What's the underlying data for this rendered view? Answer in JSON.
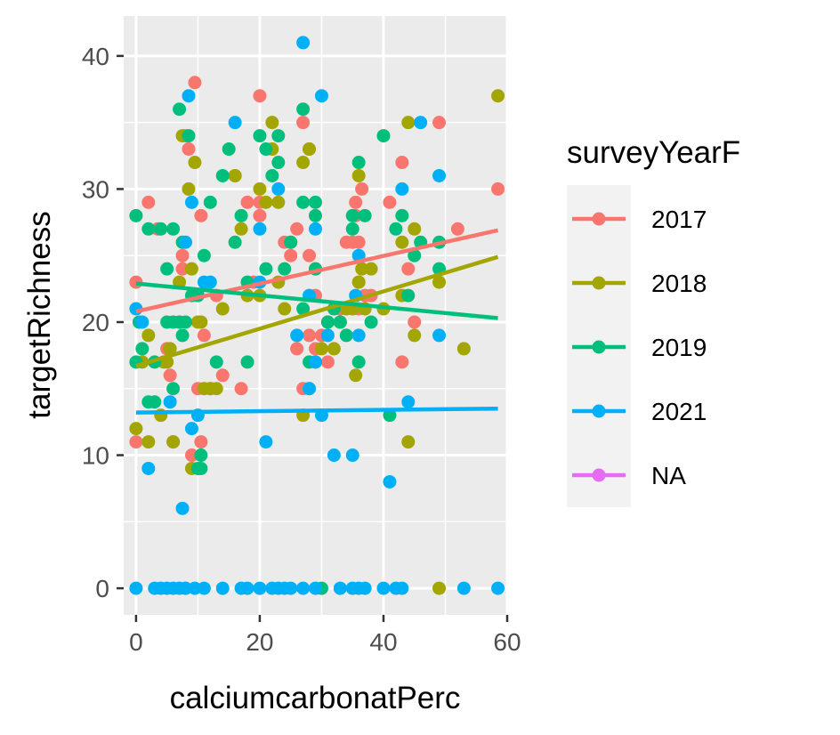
{
  "chart_data": {
    "type": "scatter",
    "title": "",
    "xlabel": "calciumcarbonatPerc",
    "ylabel": "targetRichness",
    "xlim": [
      -2,
      60
    ],
    "ylim": [
      -2,
      43
    ],
    "x_ticks": [
      0,
      20,
      40,
      60
    ],
    "y_ticks": [
      0,
      10,
      20,
      30,
      40
    ],
    "x_tick_labels": [
      "0",
      "20",
      "40",
      "60"
    ],
    "y_tick_labels": [
      "0",
      "10",
      "20",
      "30",
      "40"
    ],
    "grid": true,
    "legend": {
      "title": "surveyYearF",
      "position": "right"
    },
    "series": [
      {
        "name": "2017",
        "color": "#F8766D",
        "trend": [
          [
            0,
            20.8
          ],
          [
            58.5,
            26.9
          ]
        ],
        "points": [
          [
            0,
            23
          ],
          [
            0,
            11
          ],
          [
            2,
            29
          ],
          [
            3.5,
            27
          ],
          [
            5,
            18
          ],
          [
            5.5,
            16
          ],
          [
            6,
            11
          ],
          [
            7,
            20
          ],
          [
            7.5,
            25
          ],
          [
            7.5,
            24
          ],
          [
            8,
            34
          ],
          [
            8.5,
            33
          ],
          [
            9,
            10
          ],
          [
            9.5,
            38
          ],
          [
            10,
            15
          ],
          [
            10.5,
            11
          ],
          [
            10.5,
            28
          ],
          [
            11,
            19
          ],
          [
            12,
            15
          ],
          [
            13,
            22
          ],
          [
            14,
            16
          ],
          [
            16,
            31
          ],
          [
            17,
            15
          ],
          [
            18,
            29
          ],
          [
            19,
            23
          ],
          [
            20,
            37
          ],
          [
            20,
            29
          ],
          [
            20,
            28
          ],
          [
            24,
            26
          ],
          [
            25,
            25
          ],
          [
            26,
            18
          ],
          [
            26,
            27
          ],
          [
            27,
            35
          ],
          [
            27,
            15
          ],
          [
            28,
            33
          ],
          [
            28,
            19
          ],
          [
            28,
            25
          ],
          [
            29,
            18
          ],
          [
            29,
            22
          ],
          [
            30,
            19
          ],
          [
            31,
            17
          ],
          [
            33,
            20
          ],
          [
            33,
            21
          ],
          [
            34,
            26
          ],
          [
            35,
            26
          ],
          [
            35.5,
            28
          ],
          [
            35.5,
            29
          ],
          [
            36,
            23
          ],
          [
            36,
            21
          ],
          [
            36,
            26
          ],
          [
            36.5,
            30
          ],
          [
            37,
            22
          ],
          [
            38,
            22
          ],
          [
            41,
            29
          ],
          [
            43,
            17
          ],
          [
            43,
            32
          ],
          [
            44,
            24
          ],
          [
            45,
            20
          ],
          [
            49,
            35
          ],
          [
            52,
            27
          ],
          [
            58.5,
            30
          ]
        ]
      },
      {
        "name": "2018",
        "color": "#A3A500",
        "trend": [
          [
            0,
            16.7
          ],
          [
            58.5,
            24.9
          ]
        ],
        "points": [
          [
            0,
            12
          ],
          [
            1,
            17
          ],
          [
            2,
            19
          ],
          [
            2,
            11
          ],
          [
            4,
            13
          ],
          [
            4.5,
            17
          ],
          [
            5,
            17
          ],
          [
            5.5,
            18
          ],
          [
            6,
            11
          ],
          [
            7,
            23
          ],
          [
            7.5,
            34
          ],
          [
            8,
            0
          ],
          [
            8.5,
            30
          ],
          [
            9,
            24
          ],
          [
            9,
            9
          ],
          [
            9.5,
            32
          ],
          [
            10,
            20
          ],
          [
            10.5,
            20
          ],
          [
            11,
            15
          ],
          [
            12,
            15
          ],
          [
            13,
            15
          ],
          [
            14,
            21
          ],
          [
            16,
            31
          ],
          [
            17,
            27
          ],
          [
            18,
            22
          ],
          [
            20,
            30
          ],
          [
            20,
            22
          ],
          [
            21,
            29
          ],
          [
            22,
            33
          ],
          [
            22,
            35
          ],
          [
            23,
            23
          ],
          [
            23,
            29
          ],
          [
            24,
            21
          ],
          [
            25,
            26
          ],
          [
            27,
            32
          ],
          [
            27,
            13
          ],
          [
            28,
            33
          ],
          [
            28,
            15
          ],
          [
            29,
            17
          ],
          [
            29,
            24
          ],
          [
            30,
            18
          ],
          [
            31,
            20
          ],
          [
            32,
            18
          ],
          [
            33,
            20
          ],
          [
            34,
            21
          ],
          [
            35,
            21
          ],
          [
            35.5,
            16
          ],
          [
            36,
            23
          ],
          [
            36,
            31
          ],
          [
            36.5,
            24
          ],
          [
            37,
            21
          ],
          [
            38,
            24
          ],
          [
            40,
            21
          ],
          [
            43,
            26
          ],
          [
            43,
            22
          ],
          [
            44,
            35
          ],
          [
            44,
            11
          ],
          [
            45,
            19
          ],
          [
            45,
            27
          ],
          [
            49,
            0
          ],
          [
            49,
            23
          ],
          [
            53,
            18
          ],
          [
            58.5,
            37
          ]
        ]
      },
      {
        "name": "2019",
        "color": "#00BF7D",
        "trend": [
          [
            0,
            22.9
          ],
          [
            58.5,
            20.3
          ]
        ],
        "points": [
          [
            0,
            28
          ],
          [
            0,
            17
          ],
          [
            0.5,
            20
          ],
          [
            1,
            18
          ],
          [
            2,
            27
          ],
          [
            2,
            14
          ],
          [
            3,
            17
          ],
          [
            3,
            14
          ],
          [
            4,
            27
          ],
          [
            5,
            20
          ],
          [
            5,
            24
          ],
          [
            6,
            27
          ],
          [
            6,
            20
          ],
          [
            6,
            15
          ],
          [
            7,
            20
          ],
          [
            7,
            36
          ],
          [
            7.5,
            26
          ],
          [
            7.5,
            19
          ],
          [
            8,
            20
          ],
          [
            8.5,
            34
          ],
          [
            9,
            22
          ],
          [
            10,
            22
          ],
          [
            10,
            9
          ],
          [
            10.5,
            10
          ],
          [
            10.5,
            9
          ],
          [
            11,
            25
          ],
          [
            12,
            29
          ],
          [
            13,
            17
          ],
          [
            14,
            31
          ],
          [
            15,
            33
          ],
          [
            16,
            26
          ],
          [
            17,
            28
          ],
          [
            18,
            23
          ],
          [
            18,
            17
          ],
          [
            20,
            34
          ],
          [
            21,
            33
          ],
          [
            21,
            24
          ],
          [
            22,
            31
          ],
          [
            23,
            34
          ],
          [
            23,
            32
          ],
          [
            24,
            24
          ],
          [
            25,
            26
          ],
          [
            27,
            36
          ],
          [
            27,
            29
          ],
          [
            27,
            21
          ],
          [
            28,
            17
          ],
          [
            29,
            28
          ],
          [
            29,
            29
          ],
          [
            29,
            24
          ],
          [
            30,
            0
          ],
          [
            31,
            20
          ],
          [
            32,
            21
          ],
          [
            33,
            20
          ],
          [
            34,
            19
          ],
          [
            35,
            28
          ],
          [
            35,
            27
          ],
          [
            36,
            32
          ],
          [
            36,
            17
          ],
          [
            37,
            28
          ],
          [
            38,
            20
          ],
          [
            40,
            34
          ],
          [
            41,
            13
          ],
          [
            42,
            27
          ],
          [
            43,
            28
          ],
          [
            44,
            22
          ],
          [
            45,
            25
          ],
          [
            46,
            26
          ],
          [
            49,
            26
          ],
          [
            49,
            24
          ]
        ]
      },
      {
        "name": "2021",
        "color": "#00B0F6",
        "trend": [
          [
            0,
            13.2
          ],
          [
            58.5,
            13.5
          ]
        ],
        "points": [
          [
            0,
            21
          ],
          [
            0,
            0
          ],
          [
            1,
            20
          ],
          [
            2,
            9
          ],
          [
            3,
            0
          ],
          [
            4,
            0
          ],
          [
            5,
            0
          ],
          [
            5.5,
            14
          ],
          [
            6,
            0
          ],
          [
            7,
            0
          ],
          [
            7.5,
            6
          ],
          [
            8,
            26
          ],
          [
            8,
            0
          ],
          [
            8.5,
            37
          ],
          [
            9,
            29
          ],
          [
            9,
            12
          ],
          [
            9.5,
            0
          ],
          [
            10,
            13
          ],
          [
            11,
            0
          ],
          [
            11,
            23
          ],
          [
            12,
            23
          ],
          [
            14,
            0
          ],
          [
            16,
            35
          ],
          [
            17,
            0
          ],
          [
            18,
            0
          ],
          [
            20,
            0
          ],
          [
            20,
            27
          ],
          [
            20,
            23
          ],
          [
            21,
            11
          ],
          [
            22,
            0
          ],
          [
            23,
            30
          ],
          [
            23,
            0
          ],
          [
            24,
            0
          ],
          [
            25,
            0
          ],
          [
            26,
            19
          ],
          [
            27,
            41
          ],
          [
            27,
            0
          ],
          [
            28,
            22
          ],
          [
            28,
            15
          ],
          [
            29,
            27
          ],
          [
            29,
            0
          ],
          [
            29,
            17
          ],
          [
            30,
            37
          ],
          [
            30,
            13
          ],
          [
            31,
            19
          ],
          [
            32,
            10
          ],
          [
            33,
            0
          ],
          [
            35,
            0
          ],
          [
            35,
            10
          ],
          [
            35.5,
            22
          ],
          [
            36,
            0
          ],
          [
            36,
            19
          ],
          [
            36,
            25
          ],
          [
            37,
            0
          ],
          [
            40,
            0
          ],
          [
            41,
            8
          ],
          [
            42,
            0
          ],
          [
            43,
            30
          ],
          [
            43,
            0
          ],
          [
            44,
            14
          ],
          [
            46,
            35
          ],
          [
            49,
            31
          ],
          [
            49,
            19
          ],
          [
            53,
            0
          ],
          [
            58.5,
            0
          ]
        ]
      },
      {
        "name": "NA",
        "color": "#E76BF3",
        "trend": [],
        "points": []
      }
    ]
  }
}
